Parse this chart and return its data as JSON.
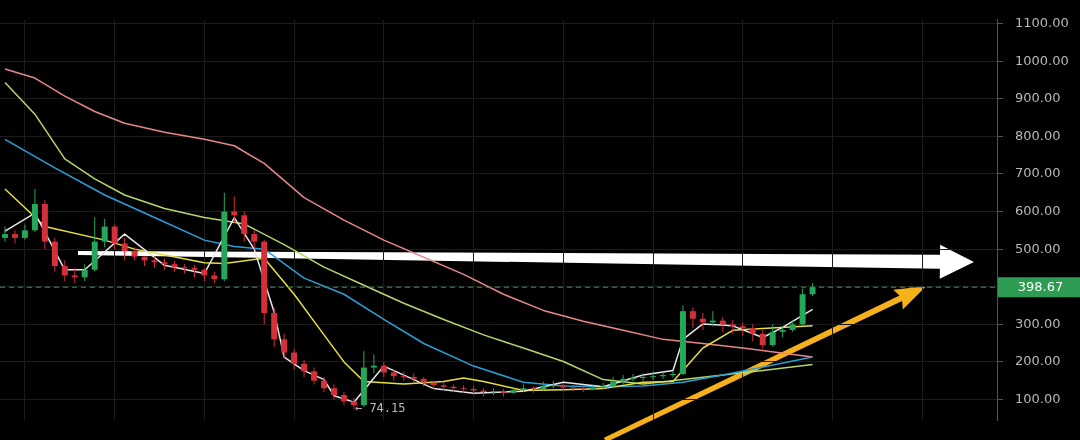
{
  "chart_data": {
    "type": "candlestick",
    "categories": [
      null,
      null,
      null,
      null,
      null,
      null,
      null,
      null,
      null,
      null,
      null,
      null,
      null,
      null,
      null,
      null,
      null,
      null,
      null,
      null,
      null,
      null,
      null,
      null,
      null,
      null,
      null,
      null,
      null,
      null,
      null,
      null,
      null,
      null,
      null,
      null,
      null,
      null,
      null,
      null,
      null,
      null,
      null,
      null,
      null,
      null,
      null,
      null,
      null,
      null,
      null,
      null,
      null,
      null,
      null,
      null,
      null,
      null,
      null,
      null,
      null,
      null,
      null,
      null,
      null,
      null,
      null,
      null,
      null,
      null,
      null,
      null,
      null,
      null,
      null,
      null,
      null,
      null,
      null,
      null,
      null,
      null,
      null,
      null,
      null,
      null,
      null,
      null,
      null,
      null,
      null,
      null,
      null,
      null,
      null,
      null,
      null,
      null,
      null,
      null
    ],
    "ohlc": [
      [
        530,
        560,
        520,
        540
      ],
      [
        540,
        550,
        515,
        530
      ],
      [
        530,
        565,
        525,
        550
      ],
      [
        550,
        660,
        545,
        620
      ],
      [
        620,
        630,
        500,
        520
      ],
      [
        520,
        530,
        440,
        455
      ],
      [
        455,
        470,
        415,
        430
      ],
      [
        430,
        450,
        410,
        425
      ],
      [
        425,
        460,
        415,
        445
      ],
      [
        445,
        585,
        440,
        520
      ],
      [
        520,
        580,
        505,
        560
      ],
      [
        560,
        565,
        500,
        515
      ],
      [
        515,
        530,
        470,
        495
      ],
      [
        495,
        505,
        470,
        480
      ],
      [
        480,
        480,
        455,
        470
      ],
      [
        470,
        480,
        450,
        465
      ],
      [
        465,
        475,
        445,
        460
      ],
      [
        460,
        468,
        440,
        452
      ],
      [
        452,
        460,
        435,
        450
      ],
      [
        450,
        458,
        425,
        445
      ],
      [
        445,
        450,
        415,
        430
      ],
      [
        430,
        440,
        410,
        420
      ],
      [
        420,
        650,
        415,
        600
      ],
      [
        600,
        640,
        570,
        590
      ],
      [
        590,
        600,
        520,
        540
      ],
      [
        540,
        550,
        500,
        520
      ],
      [
        520,
        525,
        300,
        330
      ],
      [
        330,
        345,
        240,
        260
      ],
      [
        260,
        275,
        210,
        225
      ],
      [
        225,
        235,
        180,
        195
      ],
      [
        195,
        205,
        160,
        175
      ],
      [
        175,
        185,
        140,
        150
      ],
      [
        150,
        160,
        120,
        130
      ],
      [
        130,
        140,
        100,
        112
      ],
      [
        112,
        120,
        85,
        95
      ],
      [
        95,
        105,
        74.15,
        85
      ],
      [
        85,
        229,
        80,
        185
      ],
      [
        185,
        220,
        170,
        190
      ],
      [
        190,
        200,
        160,
        172
      ],
      [
        172,
        180,
        150,
        162
      ],
      [
        162,
        175,
        150,
        160
      ],
      [
        160,
        170,
        145,
        155
      ],
      [
        155,
        160,
        135,
        145
      ],
      [
        145,
        150,
        128,
        138
      ],
      [
        138,
        145,
        125,
        134
      ],
      [
        134,
        140,
        120,
        130
      ],
      [
        130,
        138,
        118,
        128
      ],
      [
        128,
        135,
        112,
        124
      ],
      [
        124,
        130,
        108,
        120
      ],
      [
        120,
        130,
        112,
        122
      ],
      [
        122,
        128,
        108,
        118
      ],
      [
        118,
        132,
        115,
        125
      ],
      [
        125,
        140,
        120,
        130
      ],
      [
        130,
        135,
        118,
        128
      ],
      [
        128,
        148,
        125,
        135
      ],
      [
        135,
        150,
        130,
        138
      ],
      [
        138,
        142,
        125,
        132
      ],
      [
        132,
        138,
        122,
        130
      ],
      [
        130,
        135,
        120,
        128
      ],
      [
        128,
        140,
        125,
        132
      ],
      [
        132,
        145,
        128,
        135
      ],
      [
        135,
        160,
        130,
        148
      ],
      [
        148,
        165,
        140,
        155
      ],
      [
        155,
        168,
        148,
        158
      ],
      [
        158,
        170,
        150,
        160
      ],
      [
        160,
        175,
        152,
        162
      ],
      [
        162,
        172,
        155,
        165
      ],
      [
        165,
        175,
        158,
        168
      ],
      [
        168,
        350,
        165,
        335
      ],
      [
        335,
        345,
        290,
        315
      ],
      [
        315,
        330,
        285,
        305
      ],
      [
        305,
        335,
        295,
        310
      ],
      [
        310,
        320,
        280,
        300
      ],
      [
        300,
        312,
        275,
        295
      ],
      [
        295,
        305,
        270,
        290
      ],
      [
        290,
        300,
        255,
        275
      ],
      [
        275,
        285,
        235,
        245
      ],
      [
        245,
        300,
        240,
        280
      ],
      [
        280,
        295,
        265,
        285
      ],
      [
        285,
        310,
        280,
        300
      ],
      [
        300,
        395,
        295,
        380
      ],
      [
        380,
        409,
        375,
        398.67
      ],
      null,
      null,
      null,
      null,
      null,
      null,
      null,
      null,
      null,
      null,
      null,
      null,
      null,
      null,
      null,
      null,
      null,
      null
    ],
    "series": [
      {
        "type": "line",
        "color": "#e6e6e6",
        "values": [
          548,
          null,
          null,
          596,
          null,
          null,
          445,
          null,
          445,
          null,
          null,
          null,
          540,
          null,
          null,
          null,
          457,
          null,
          null,
          null,
          435,
          null,
          null,
          584,
          null,
          500,
          null,
          332,
          213,
          null,
          177,
          null,
          153,
          110,
          null,
          93,
          null,
          null,
          189,
          null,
          165,
          null,
          null,
          129,
          null,
          null,
          null,
          117,
          null,
          null,
          null,
          null,
          122,
          null,
          null,
          null,
          146,
          null,
          null,
          null,
          134,
          null,
          null,
          null,
          165,
          null,
          null,
          177,
          260,
          null,
          301,
          null,
          null,
          296,
          null,
          null,
          265,
          null,
          292,
          null,
          null,
          340,
          null,
          null,
          null,
          null,
          null,
          null,
          null,
          null,
          null,
          null,
          null,
          null,
          null,
          null,
          null,
          null,
          null,
          null
        ]
      },
      {
        "type": "line",
        "color": "#e8e03a",
        "values": [
          660,
          null,
          null,
          null,
          560,
          null,
          null,
          null,
          null,
          null,
          524,
          null,
          null,
          500,
          null,
          null,
          null,
          null,
          null,
          null,
          464,
          null,
          462,
          null,
          null,
          null,
          476,
          null,
          null,
          380,
          null,
          308,
          null,
          null,
          200,
          null,
          148,
          null,
          null,
          null,
          141,
          null,
          null,
          null,
          148,
          null,
          157,
          null,
          148,
          null,
          null,
          null,
          124,
          null,
          null,
          null,
          126,
          null,
          null,
          null,
          129,
          null,
          null,
          null,
          146,
          null,
          null,
          148,
          null,
          null,
          237,
          null,
          null,
          284,
          null,
          null,
          289,
          null,
          null,
          null,
          null,
          296,
          null,
          null,
          null,
          null,
          null,
          null,
          null,
          null,
          null,
          null,
          null,
          null,
          null,
          null,
          null,
          null,
          null,
          null
        ]
      },
      {
        "type": "line",
        "color": "#2a9fd6",
        "values": [
          792,
          null,
          null,
          null,
          null,
          716,
          null,
          null,
          null,
          null,
          644,
          null,
          null,
          null,
          null,
          584,
          null,
          null,
          null,
          null,
          524,
          null,
          null,
          507,
          null,
          null,
          500,
          null,
          null,
          null,
          423,
          null,
          null,
          null,
          380,
          null,
          null,
          null,
          313,
          null,
          null,
          null,
          249,
          null,
          null,
          null,
          null,
          189,
          null,
          null,
          null,
          null,
          146,
          null,
          null,
          null,
          136,
          null,
          null,
          null,
          134,
          null,
          null,
          null,
          136,
          null,
          null,
          null,
          146,
          null,
          null,
          null,
          165,
          null,
          null,
          null,
          null,
          null,
          null,
          null,
          null,
          213,
          null,
          null,
          null,
          null,
          null,
          null,
          null,
          null,
          null,
          null,
          null,
          null,
          null,
          null,
          null,
          null,
          null,
          null
        ]
      },
      {
        "type": "line",
        "color": "#b5d66b",
        "values": [
          943,
          null,
          null,
          859,
          null,
          null,
          740,
          null,
          null,
          687,
          null,
          null,
          644,
          null,
          null,
          null,
          608,
          null,
          null,
          null,
          584,
          null,
          null,
          null,
          567,
          null,
          null,
          null,
          512,
          null,
          null,
          null,
          452,
          null,
          null,
          null,
          404,
          null,
          null,
          null,
          356,
          null,
          null,
          null,
          313,
          null,
          null,
          null,
          272,
          null,
          null,
          null,
          237,
          null,
          null,
          null,
          201,
          null,
          null,
          null,
          153,
          null,
          null,
          null,
          141,
          null,
          null,
          null,
          153,
          null,
          null,
          null,
          165,
          null,
          null,
          null,
          177,
          null,
          null,
          null,
          null,
          193,
          null,
          null,
          null,
          null,
          null,
          null,
          null,
          null,
          null,
          null,
          null,
          null,
          null,
          null,
          null,
          null,
          null,
          null
        ]
      },
      {
        "type": "line",
        "color": "#e8868a",
        "values": [
          979,
          null,
          null,
          955,
          null,
          null,
          907,
          null,
          null,
          866,
          null,
          null,
          835,
          null,
          null,
          null,
          811,
          null,
          null,
          null,
          792,
          null,
          null,
          775,
          null,
          null,
          728,
          null,
          null,
          null,
          637,
          null,
          null,
          null,
          577,
          null,
          null,
          null,
          524,
          null,
          null,
          null,
          null,
          null,
          null,
          null,
          433,
          null,
          null,
          null,
          380,
          null,
          null,
          null,
          337,
          null,
          null,
          null,
          308,
          null,
          null,
          null,
          284,
          null,
          null,
          null,
          260,
          null,
          null,
          null,
          249,
          null,
          null,
          null,
          237,
          null,
          null,
          null,
          null,
          null,
          null,
          213,
          null,
          null,
          null,
          null,
          null,
          null,
          null,
          null,
          null,
          null,
          null,
          null,
          null,
          null,
          null,
          null,
          null,
          null
        ]
      }
    ],
    "ylim": [
      45,
      1110
    ],
    "yticks": [
      {
        "value": 100,
        "label": "100.00"
      },
      {
        "value": 200,
        "label": "200.00"
      },
      {
        "value": 300,
        "label": "300.00"
      },
      {
        "value": 400,
        "label": null
      },
      {
        "value": 500,
        "label": "500.00"
      },
      {
        "value": 600,
        "label": "600.00"
      },
      {
        "value": 700,
        "label": "700.00"
      },
      {
        "value": 800,
        "label": "800.00"
      },
      {
        "value": 900,
        "label": "900.00"
      },
      {
        "value": 1000,
        "label": "1000.00"
      },
      {
        "value": 1100,
        "label": "1100.00"
      }
    ],
    "ref_lines": [
      {
        "axis": "y",
        "value": 398.67,
        "label": "398.67",
        "color": "#2e9b52",
        "line_style": "dashed"
      }
    ],
    "annotations": [
      "← 74.15"
    ],
    "grid": true,
    "tick_labels": "y"
  }
}
